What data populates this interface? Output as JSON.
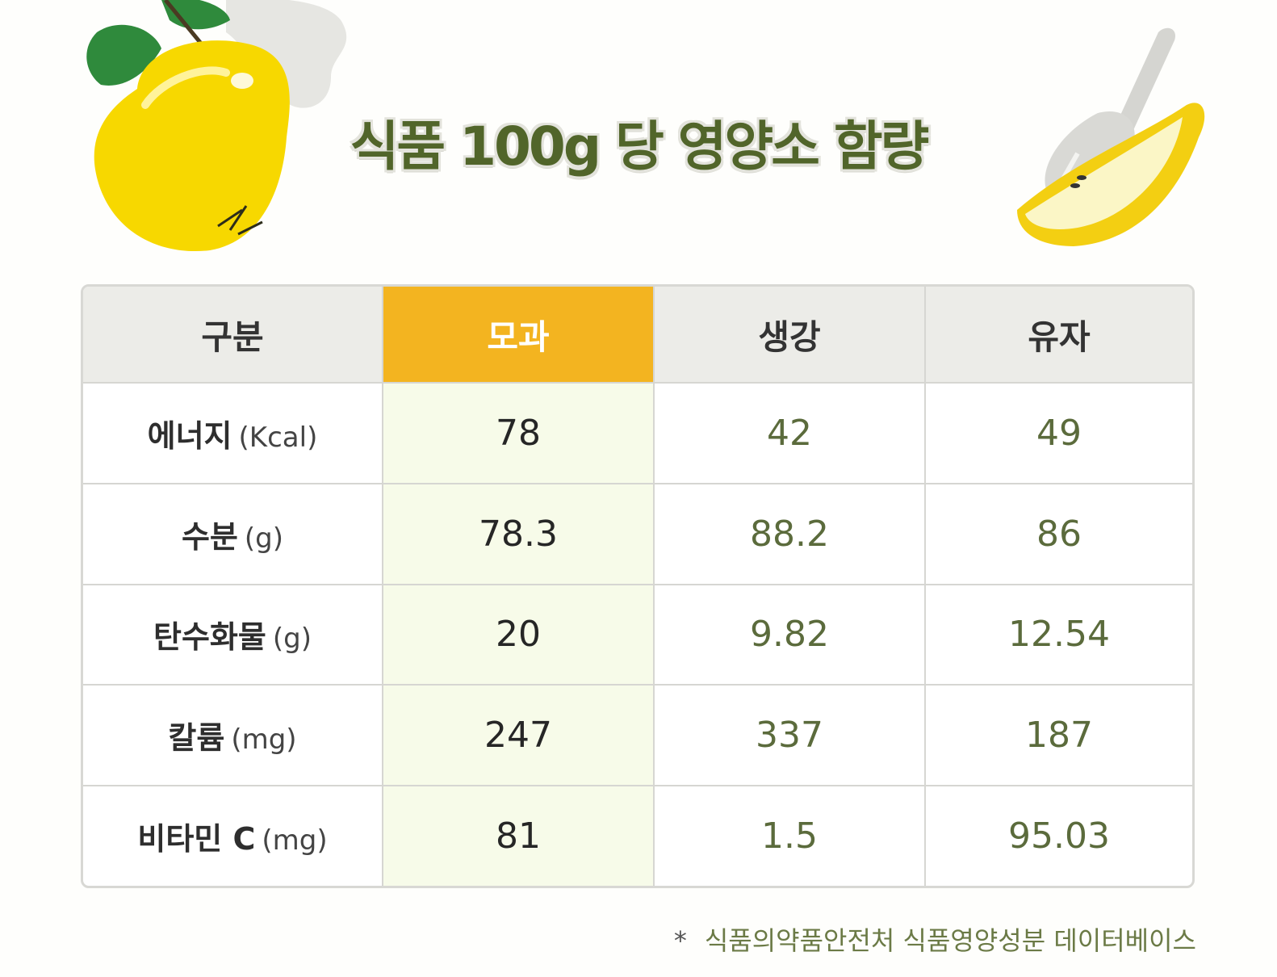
{
  "title": "식품 100g 당 영양소 함량",
  "table": {
    "headers": [
      "구분",
      "모과",
      "생강",
      "유자"
    ],
    "rows": [
      {
        "label": "에너지",
        "unit": "(Kcal)",
        "values": [
          "78",
          "42",
          "49"
        ]
      },
      {
        "label": "수분",
        "unit": "(g)",
        "values": [
          "78.3",
          "88.2",
          "86"
        ]
      },
      {
        "label": "탄수화물",
        "unit": "(g)",
        "values": [
          "20",
          "9.82",
          "12.54"
        ]
      },
      {
        "label": "칼륨",
        "unit": "(mg)",
        "values": [
          "247",
          "337",
          "187"
        ]
      },
      {
        "label": "비타민 C",
        "unit": "(mg)",
        "values": [
          "81",
          "1.5",
          "95.03"
        ]
      }
    ]
  },
  "source": {
    "marker": "*",
    "text": "식품의약품안전처 식품영양성분 데이터베이스"
  },
  "icons": {
    "left": "quince-fruit-icon",
    "right": "quince-slice-fork-icon"
  },
  "colors": {
    "title": "#51652a",
    "header_highlight": "#f3b420",
    "column_highlight": "#f7fbe9",
    "value_text": "#5b6b3c"
  }
}
